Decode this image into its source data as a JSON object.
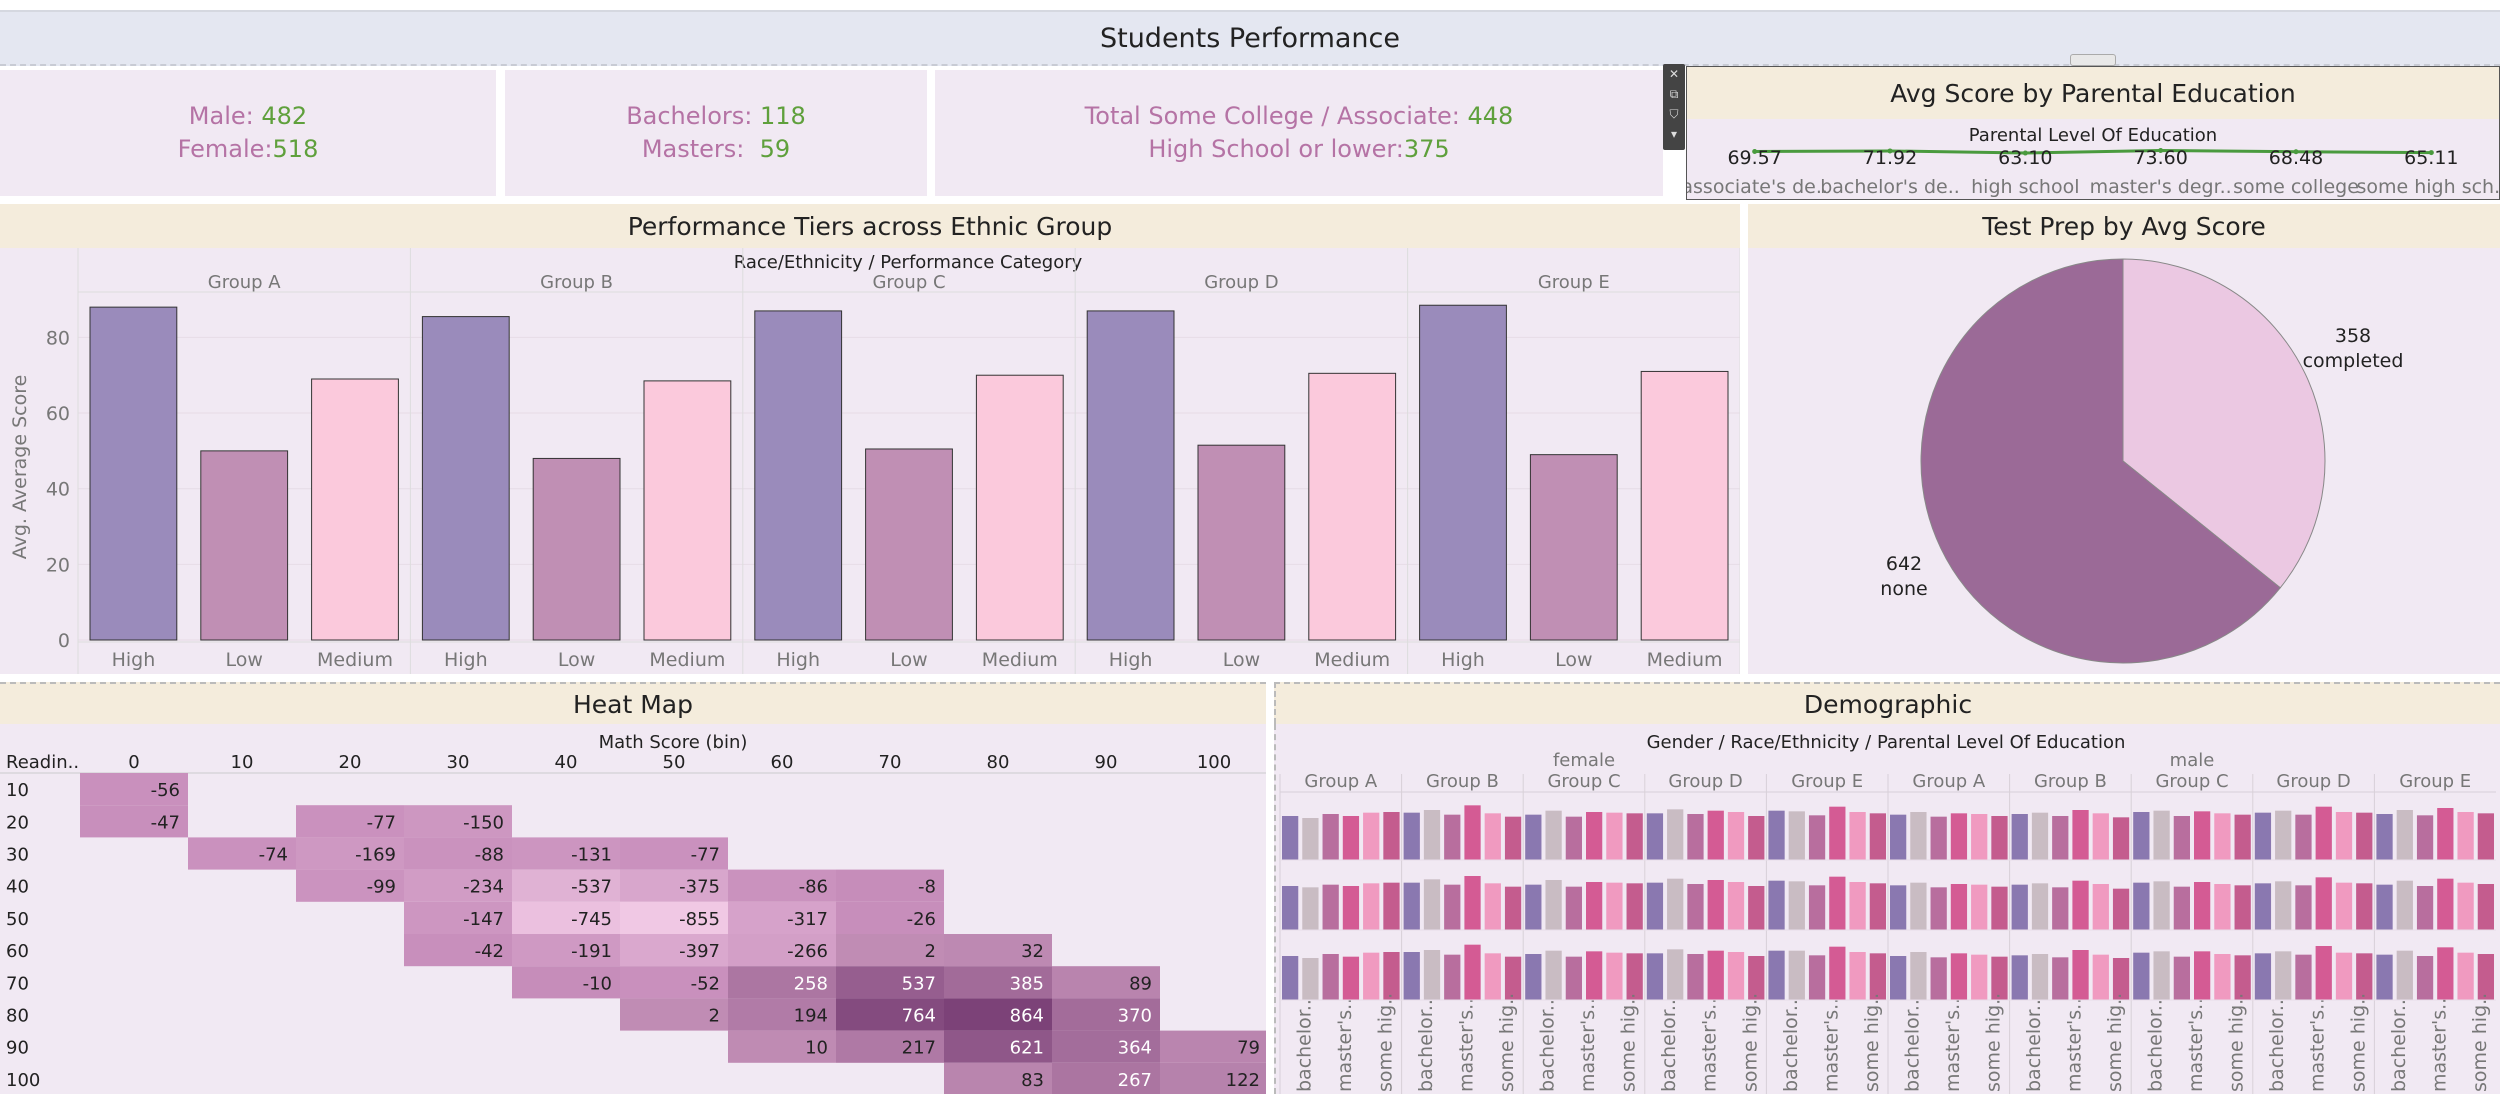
{
  "header": {
    "title": "Students Performance"
  },
  "kpis": {
    "gender": {
      "male_label": "Male:",
      "male_value": "482",
      "female_label": "Female:",
      "female_value": "518"
    },
    "degree": {
      "bachelors_label": "Bachelors:",
      "bachelors_value": "118",
      "masters_label": "Masters:",
      "masters_value": "59"
    },
    "college": {
      "some_college_label": "Total Some College / Associate:",
      "some_college_value": "448",
      "hs_label": "High School or lower:",
      "hs_value": "375"
    }
  },
  "toolbar": {
    "icons": [
      "close-icon",
      "popout-icon",
      "filter-icon",
      "more-icon"
    ]
  },
  "panels": {
    "parental": "Avg Score by Parental Education",
    "tiers": "Performance Tiers across Ethnic Group",
    "testprep": "Test Prep by Avg Score",
    "heatmap": "Heat Map",
    "demographic": "Demographic"
  },
  "colors": {
    "high": "#9a8bbb",
    "low": "#c08fb4",
    "medium": "#fbc9dc",
    "pie_none": "#9b6a97",
    "pie_completed": "#ebc8e2",
    "line": "#4a9a3e",
    "kpi_value": "#5fa03c",
    "kpi_label": "#b573a5"
  },
  "chart_data": [
    {
      "id": "parental",
      "type": "line",
      "title": "Avg Score by Parental Education",
      "header": "Parental Level Of Education",
      "categories": [
        "associate's de..",
        "bachelor's de..",
        "high school",
        "master's degr..",
        "some college",
        "some high sch.."
      ],
      "values": [
        69.57,
        71.92,
        63.1,
        73.6,
        68.48,
        65.11
      ],
      "value_labels": [
        "69.57",
        "71.92",
        "63.10",
        "73.60",
        "68.48",
        "65.11"
      ]
    },
    {
      "id": "tiers",
      "type": "bar",
      "title": "Performance Tiers across Ethnic Group",
      "header": "Race/Ethnicity  /  Performance Category",
      "ylabel": "Avg. Average Score",
      "ylim": [
        0,
        92
      ],
      "yticks": [
        0,
        20,
        40,
        60,
        80
      ],
      "groups": [
        "Group A",
        "Group B",
        "Group C",
        "Group D",
        "Group E"
      ],
      "categories": [
        "High",
        "Low",
        "Medium"
      ],
      "series": [
        {
          "group": "Group A",
          "values": [
            88,
            50,
            69
          ]
        },
        {
          "group": "Group B",
          "values": [
            85.5,
            48,
            68.5
          ]
        },
        {
          "group": "Group C",
          "values": [
            87,
            50.5,
            70
          ]
        },
        {
          "group": "Group D",
          "values": [
            87,
            51.5,
            70.5
          ]
        },
        {
          "group": "Group E",
          "values": [
            88.5,
            49,
            71
          ]
        }
      ]
    },
    {
      "id": "testprep",
      "type": "pie",
      "title": "Test Prep by Avg Score",
      "slices": [
        {
          "label": "none",
          "value": 642
        },
        {
          "label": "completed",
          "value": 358
        }
      ]
    },
    {
      "id": "heatmap",
      "type": "heatmap",
      "title": "Heat Map",
      "header": "Math Score (bin)",
      "row_header": "Readin..",
      "columns": [
        "0",
        "10",
        "20",
        "30",
        "40",
        "50",
        "60",
        "70",
        "80",
        "90",
        "100"
      ],
      "rows": [
        "10",
        "20",
        "30",
        "40",
        "50",
        "60",
        "70",
        "80",
        "90",
        "100"
      ],
      "cells": [
        [
          -56,
          null,
          null,
          null,
          null,
          null,
          null,
          null,
          null,
          null,
          null
        ],
        [
          -47,
          null,
          -77,
          -150,
          null,
          null,
          null,
          null,
          null,
          null,
          null
        ],
        [
          null,
          -74,
          -169,
          -88,
          -131,
          -77,
          null,
          null,
          null,
          null,
          null
        ],
        [
          null,
          null,
          -99,
          -234,
          -537,
          -375,
          -86,
          -8,
          null,
          null,
          null
        ],
        [
          null,
          null,
          null,
          -147,
          -745,
          -855,
          -317,
          -26,
          null,
          null,
          null
        ],
        [
          null,
          null,
          null,
          -42,
          -191,
          -397,
          -266,
          2,
          32,
          null,
          null
        ],
        [
          null,
          null,
          null,
          null,
          -10,
          -52,
          258,
          537,
          385,
          89,
          null
        ],
        [
          null,
          null,
          null,
          null,
          null,
          2,
          194,
          764,
          864,
          370,
          null
        ],
        [
          null,
          null,
          null,
          null,
          null,
          null,
          10,
          217,
          621,
          364,
          79
        ],
        [
          null,
          null,
          null,
          null,
          null,
          null,
          null,
          null,
          83,
          267,
          122
        ]
      ]
    },
    {
      "id": "demographic",
      "type": "bar",
      "title": "Demographic",
      "header": "Gender  /  Race/Ethnicity  /  Parental Level Of Education",
      "genders": [
        "female",
        "male"
      ],
      "groups": [
        "Group A",
        "Group B",
        "Group C",
        "Group D",
        "Group E"
      ],
      "categories": [
        "associate's de..",
        "bachelor's de..",
        "high school",
        "master's degr..",
        "some college",
        "some high sch.."
      ],
      "visible_category_labels": [
        "bachelor..",
        "master's..",
        "some hig.."
      ],
      "rows": [
        [
          [
            66,
            63,
            69,
            66,
            71,
            72
          ],
          [
            71,
            75,
            68,
            82,
            70,
            65
          ],
          [
            68,
            74,
            65,
            72,
            71,
            70
          ],
          [
            70,
            76,
            69,
            74,
            72,
            66
          ],
          [
            74,
            73,
            67,
            80,
            72,
            70
          ],
          [
            68,
            72,
            65,
            70,
            69,
            66
          ],
          [
            69,
            71,
            66,
            75,
            70,
            64
          ],
          [
            72,
            74,
            66,
            73,
            70,
            68
          ],
          [
            71,
            74,
            68,
            80,
            72,
            71
          ],
          [
            69,
            75,
            67,
            78,
            72,
            70
          ]
        ],
        [
          [
            66,
            64,
            68,
            66,
            70,
            71
          ],
          [
            71,
            76,
            68,
            81,
            70,
            65
          ],
          [
            68,
            75,
            65,
            72,
            71,
            70
          ],
          [
            71,
            77,
            69,
            75,
            72,
            66
          ],
          [
            74,
            73,
            67,
            80,
            72,
            70
          ],
          [
            67,
            71,
            64,
            69,
            68,
            65
          ],
          [
            68,
            70,
            64,
            74,
            69,
            62
          ],
          [
            71,
            73,
            65,
            72,
            69,
            67
          ],
          [
            70,
            73,
            67,
            79,
            71,
            70
          ],
          [
            68,
            74,
            66,
            77,
            71,
            69
          ]
        ],
        [
          [
            66,
            63,
            69,
            65,
            71,
            72
          ],
          [
            72,
            75,
            68,
            83,
            70,
            65
          ],
          [
            69,
            74,
            65,
            73,
            71,
            70
          ],
          [
            70,
            76,
            69,
            74,
            72,
            66
          ],
          [
            74,
            74,
            67,
            80,
            72,
            70
          ],
          [
            66,
            72,
            64,
            70,
            68,
            65
          ],
          [
            67,
            69,
            64,
            75,
            68,
            63
          ],
          [
            71,
            73,
            65,
            73,
            69,
            67
          ],
          [
            70,
            73,
            68,
            81,
            71,
            70
          ],
          [
            68,
            74,
            66,
            79,
            71,
            69
          ]
        ]
      ],
      "ylim": [
        0,
        90
      ]
    }
  ]
}
